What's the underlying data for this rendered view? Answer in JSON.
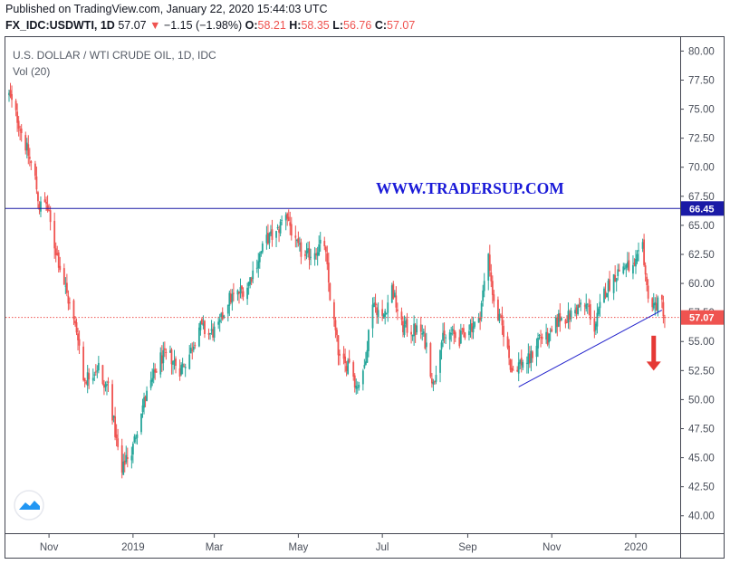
{
  "header": {
    "published": "Published on TradingView.com, January 22, 2020 15:44:03 UTC",
    "symbol": "FX_IDC:USDWTI, 1D",
    "last": "57.07",
    "change_arrow": "▼",
    "change": "−1.15 (−1.98%)",
    "o_label": "O:",
    "o_value": "58.21",
    "h_label": "H:",
    "h_value": "58.35",
    "l_label": "L:",
    "l_value": "56.76",
    "c_label": "C:",
    "c_value": "57.07"
  },
  "chart_data": {
    "type": "candlestick",
    "title": "U.S. DOLLAR / WTI CRUDE OIL, 1D, IDC",
    "subtitle": "Vol (20)",
    "watermark": "WWW.TRADERSUP.COM",
    "y_axis": {
      "position": "right",
      "range": [
        38.5,
        81.2
      ],
      "ticks": [
        "80.00",
        "77.50",
        "75.00",
        "72.50",
        "70.00",
        "67.50",
        "65.00",
        "62.50",
        "60.00",
        "57.50",
        "55.00",
        "52.50",
        "50.00",
        "47.50",
        "45.00",
        "42.50",
        "40.00"
      ]
    },
    "x_axis": {
      "range": [
        "2018-10-03",
        "2020-01-26"
      ],
      "ticks": [
        {
          "date": "2018-11-01",
          "label": "Nov"
        },
        {
          "date": "2019-01-01",
          "label": "2019"
        },
        {
          "date": "2019-03-01",
          "label": "Mar"
        },
        {
          "date": "2019-05-01",
          "label": "May"
        },
        {
          "date": "2019-07-01",
          "label": "Jul"
        },
        {
          "date": "2019-09-01",
          "label": "Sep"
        },
        {
          "date": "2019-11-01",
          "label": "Nov"
        },
        {
          "date": "2020-01-01",
          "label": "2020"
        }
      ]
    },
    "price_path": [
      [
        "2018-10-03",
        76.2
      ],
      [
        "2018-10-09",
        74.2
      ],
      [
        "2018-10-16",
        71.5
      ],
      [
        "2018-10-22",
        69.0
      ],
      [
        "2018-10-25",
        66.6
      ],
      [
        "2018-10-30",
        66.9
      ],
      [
        "2018-11-05",
        63.3
      ],
      [
        "2018-11-12",
        60.0
      ],
      [
        "2018-11-19",
        56.7
      ],
      [
        "2018-11-22",
        55.6
      ],
      [
        "2018-11-26",
        51.7
      ],
      [
        "2018-12-03",
        52.4
      ],
      [
        "2018-12-07",
        52.9
      ],
      [
        "2018-12-10",
        51.0
      ],
      [
        "2018-12-14",
        51.3
      ],
      [
        "2018-12-17",
        48.8
      ],
      [
        "2018-12-20",
        46.4
      ],
      [
        "2018-12-24",
        43.6
      ],
      [
        "2018-12-27",
        45.2
      ],
      [
        "2018-12-31",
        45.4
      ],
      [
        "2019-01-07",
        49.2
      ],
      [
        "2019-01-14",
        51.3
      ],
      [
        "2019-01-21",
        53.6
      ],
      [
        "2019-01-28",
        53.7
      ],
      [
        "2019-02-04",
        52.6
      ],
      [
        "2019-02-11",
        53.9
      ],
      [
        "2019-02-18",
        56.3
      ],
      [
        "2019-02-25",
        55.6
      ],
      [
        "2019-03-04",
        56.1
      ],
      [
        "2019-03-11",
        58.6
      ],
      [
        "2019-03-18",
        59.1
      ],
      [
        "2019-03-25",
        59.8
      ],
      [
        "2019-04-01",
        61.9
      ],
      [
        "2019-04-08",
        63.8
      ],
      [
        "2019-04-15",
        64.2
      ],
      [
        "2019-04-22",
        66.2
      ],
      [
        "2019-04-29",
        63.3
      ],
      [
        "2019-05-06",
        62.2
      ],
      [
        "2019-05-13",
        62.9
      ],
      [
        "2019-05-20",
        63.4
      ],
      [
        "2019-05-24",
        58.9
      ],
      [
        "2019-05-31",
        53.4
      ],
      [
        "2019-06-04",
        52.9
      ],
      [
        "2019-06-07",
        53.5
      ],
      [
        "2019-06-12",
        51.2
      ],
      [
        "2019-06-17",
        52.0
      ],
      [
        "2019-06-24",
        58.6
      ],
      [
        "2019-07-01",
        56.9
      ],
      [
        "2019-07-08",
        59.6
      ],
      [
        "2019-07-15",
        56.3
      ],
      [
        "2019-07-22",
        56.0
      ],
      [
        "2019-07-29",
        55.9
      ],
      [
        "2019-08-02",
        54.7
      ],
      [
        "2019-08-07",
        51.2
      ],
      [
        "2019-08-12",
        54.9
      ],
      [
        "2019-08-19",
        55.7
      ],
      [
        "2019-08-26",
        55.2
      ],
      [
        "2019-09-02",
        56.3
      ],
      [
        "2019-09-09",
        56.6
      ],
      [
        "2019-09-16",
        62.6
      ],
      [
        "2019-09-20",
        58.1
      ],
      [
        "2019-09-27",
        55.9
      ],
      [
        "2019-10-03",
        52.5
      ],
      [
        "2019-10-09",
        53.2
      ],
      [
        "2019-10-16",
        53.4
      ],
      [
        "2019-10-23",
        55.5
      ],
      [
        "2019-10-30",
        55.1
      ],
      [
        "2019-11-06",
        57.0
      ],
      [
        "2019-11-13",
        57.1
      ],
      [
        "2019-11-20",
        57.9
      ],
      [
        "2019-11-27",
        58.1
      ],
      [
        "2019-12-02",
        56.1
      ],
      [
        "2019-12-09",
        59.2
      ],
      [
        "2019-12-16",
        60.6
      ],
      [
        "2019-12-23",
        61.5
      ],
      [
        "2019-12-31",
        61.2
      ],
      [
        "2020-01-06",
        63.3
      ],
      [
        "2020-01-09",
        59.6
      ],
      [
        "2020-01-13",
        58.1
      ],
      [
        "2020-01-20",
        58.3
      ],
      [
        "2020-01-22",
        57.07
      ]
    ],
    "horizontal_line": {
      "value": 66.45,
      "label": "66.45",
      "color": "#1a1aa6"
    },
    "last_price_line": {
      "value": 57.07,
      "label": "57.07",
      "color": "#ef5350"
    },
    "trendline": {
      "from": [
        "2019-10-08",
        51.1
      ],
      "to": [
        "2020-01-20",
        57.7
      ],
      "color": "#2222cc"
    },
    "arrow": {
      "date": "2020-01-14",
      "from": 55.5,
      "to": 52.5,
      "color": "#e53935",
      "direction": "down"
    },
    "colors": {
      "up": "#26a69a",
      "down": "#ef5350",
      "axis": "#434651",
      "grid": "none"
    },
    "grid": false
  }
}
